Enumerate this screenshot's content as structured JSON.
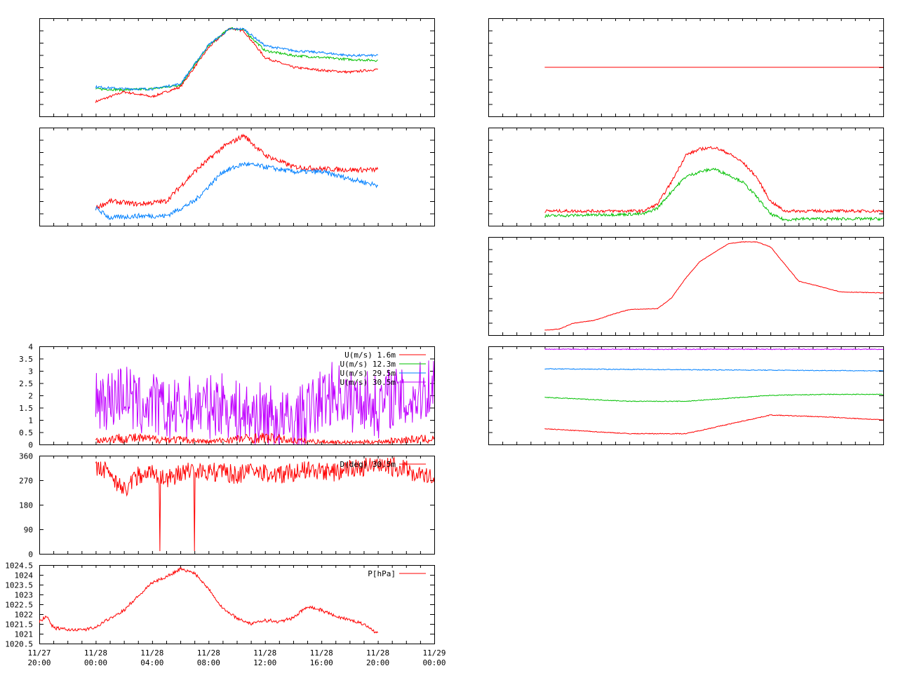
{
  "colors": {
    "red": "#ff0000",
    "green": "#00c000",
    "blue": "#0080ff",
    "violet": "#c000ff",
    "axis": "#000000"
  },
  "x_axis": {
    "range": [
      "11/27 20:00",
      "11/29 00:00"
    ],
    "ticks": [
      {
        "date": "11/27",
        "time": "20:00"
      },
      {
        "date": "11/28",
        "time": "00:00"
      },
      {
        "date": "11/28",
        "time": "04:00"
      },
      {
        "date": "11/28",
        "time": "08:00"
      },
      {
        "date": "11/28",
        "time": "12:00"
      },
      {
        "date": "11/28",
        "time": "16:00"
      },
      {
        "date": "11/28",
        "time": "20:00"
      },
      {
        "date": "11/29",
        "time": "00:00"
      }
    ]
  },
  "chart_data": [
    {
      "id": "temp_profile",
      "type": "line",
      "ylabel": "",
      "series": [
        {
          "color": "#ff0000",
          "hours": [
            4,
            6,
            8,
            10,
            12,
            13.5,
            14.5,
            16,
            18,
            20,
            22,
            24
          ],
          "values": [
            0.15,
            0.25,
            0.2,
            0.3,
            0.7,
            0.9,
            0.87,
            0.6,
            0.5,
            0.47,
            0.45,
            0.48
          ]
        },
        {
          "color": "#00c000",
          "hours": [
            4,
            6,
            8,
            10,
            12,
            13.5,
            14.5,
            16,
            18,
            20,
            22,
            24
          ],
          "values": [
            0.28,
            0.27,
            0.28,
            0.32,
            0.72,
            0.9,
            0.88,
            0.67,
            0.62,
            0.6,
            0.58,
            0.57
          ]
        },
        {
          "color": "#0080ff",
          "hours": [
            4,
            6,
            8,
            10,
            12,
            13.5,
            14.5,
            16,
            18,
            20,
            22,
            24
          ],
          "values": [
            0.3,
            0.28,
            0.28,
            0.33,
            0.73,
            0.89,
            0.89,
            0.72,
            0.67,
            0.65,
            0.62,
            0.62
          ]
        }
      ]
    },
    {
      "id": "flat_profile",
      "type": "line",
      "series": [
        {
          "color": "#ff0000",
          "hours": [
            4,
            28
          ],
          "values": [
            0.5,
            0.5
          ]
        }
      ]
    },
    {
      "id": "humidity",
      "type": "line",
      "series": [
        {
          "color": "#ff0000",
          "hours": [
            4,
            5,
            7,
            9,
            11,
            13,
            14.5,
            16,
            18,
            20,
            22,
            24
          ],
          "values": [
            0.18,
            0.25,
            0.22,
            0.25,
            0.55,
            0.8,
            0.92,
            0.72,
            0.6,
            0.58,
            0.57,
            0.57
          ]
        },
        {
          "color": "#0080ff",
          "hours": [
            4,
            5,
            7,
            9,
            11,
            13,
            14.5,
            16,
            18,
            20,
            22,
            24
          ],
          "values": [
            0.18,
            0.08,
            0.1,
            0.1,
            0.25,
            0.55,
            0.63,
            0.6,
            0.55,
            0.55,
            0.48,
            0.41
          ]
        }
      ]
    },
    {
      "id": "radiation",
      "type": "line",
      "series": [
        {
          "color": "#ff0000",
          "hours": [
            4,
            11,
            12,
            13,
            14,
            15,
            16,
            17,
            18,
            19,
            20,
            21,
            22,
            28
          ],
          "values": [
            0.15,
            0.15,
            0.22,
            0.45,
            0.72,
            0.78,
            0.8,
            0.74,
            0.65,
            0.5,
            0.25,
            0.15,
            0.15,
            0.15
          ]
        },
        {
          "color": "#00c000",
          "hours": [
            4,
            11,
            12,
            13,
            14,
            15,
            16,
            17,
            18,
            19,
            20,
            21,
            22,
            28
          ],
          "values": [
            0.1,
            0.12,
            0.18,
            0.35,
            0.5,
            0.55,
            0.58,
            0.52,
            0.45,
            0.3,
            0.12,
            0.06,
            0.07,
            0.07
          ]
        }
      ]
    },
    {
      "id": "theta_profile",
      "type": "line",
      "series": [
        {
          "color": "#ff0000",
          "hours": [
            4,
            5,
            6,
            7.5,
            9,
            10,
            12,
            13,
            14,
            15,
            17,
            18,
            19,
            20,
            22,
            25,
            28
          ],
          "values": [
            0.05,
            0.06,
            0.12,
            0.15,
            0.22,
            0.26,
            0.27,
            0.38,
            0.58,
            0.75,
            0.93,
            0.95,
            0.95,
            0.9,
            0.55,
            0.44,
            0.43
          ]
        }
      ]
    },
    {
      "id": "deep_profile",
      "type": "line",
      "series": [
        {
          "color": "#c000ff",
          "hours": [
            4,
            28
          ],
          "values": [
            0.97,
            0.97
          ]
        },
        {
          "color": "#0080ff",
          "hours": [
            4,
            28
          ],
          "values": [
            0.77,
            0.75
          ]
        },
        {
          "color": "#00c000",
          "hours": [
            4,
            10,
            14,
            20,
            24,
            28
          ],
          "values": [
            0.48,
            0.44,
            0.44,
            0.5,
            0.51,
            0.51
          ]
        },
        {
          "color": "#ff0000",
          "hours": [
            4,
            10,
            14,
            20,
            24,
            28
          ],
          "values": [
            0.16,
            0.11,
            0.11,
            0.3,
            0.28,
            0.25
          ]
        }
      ]
    },
    {
      "id": "wind_speed",
      "type": "line",
      "ylim": [
        0,
        4
      ],
      "yticks": [
        "0",
        "0.5",
        "1",
        "1.5",
        "2",
        "2.5",
        "3",
        "3.5",
        "4"
      ],
      "legend": [
        {
          "label": "U(m/s)  1.6m",
          "color": "#ff0000"
        },
        {
          "label": "U(m/s) 12.3m",
          "color": "#00c000"
        },
        {
          "label": "U(m/s) 29.5m",
          "color": "#0080ff"
        },
        {
          "label": "U(m/s) 30.5m",
          "color": "#c000ff"
        }
      ],
      "series": [
        {
          "color": "#c000ff",
          "hours": [
            4,
            5,
            6,
            7,
            8,
            9,
            10,
            11,
            12,
            13,
            14,
            15,
            16,
            17,
            18,
            19,
            20,
            21,
            22,
            23,
            24,
            25,
            26,
            27,
            28
          ],
          "values": [
            2,
            1.8,
            2.2,
            1.5,
            1.7,
            1.3,
            1.4,
            1.6,
            1.5,
            1.7,
            1.3,
            1.2,
            1.3,
            1.0,
            0.9,
            1.3,
            1.8,
            2.2,
            1.7,
            1.9,
            1.5,
            2.0,
            1.7,
            2.1,
            2.5
          ]
        },
        {
          "color": "#ff0000",
          "hours": [
            4,
            6,
            8,
            10,
            12,
            14,
            16,
            18,
            20,
            22,
            24,
            26,
            28
          ],
          "values": [
            0.3,
            0.5,
            0.4,
            0.35,
            0.2,
            0.4,
            0.5,
            0.3,
            0.2,
            0.15,
            0.2,
            0.35,
            0.4
          ]
        }
      ]
    },
    {
      "id": "wind_direction",
      "type": "line",
      "ylim": [
        0,
        360
      ],
      "yticks": [
        "0",
        "90",
        "180",
        "270",
        "360"
      ],
      "legend": [
        {
          "label": "D(deg) 30.5m",
          "color": "#ff0000"
        }
      ],
      "series": [
        {
          "color": "#ff0000",
          "hours": [
            4,
            5,
            6,
            7,
            8,
            9,
            10,
            11,
            12,
            13,
            14,
            15,
            16,
            17,
            18,
            19,
            20,
            21,
            22,
            23,
            24,
            25,
            26,
            27,
            28
          ],
          "values": [
            310,
            300,
            230,
            290,
            300,
            270,
            300,
            310,
            300,
            300,
            290,
            300,
            295,
            290,
            300,
            305,
            300,
            300,
            310,
            320,
            315,
            320,
            310,
            290,
            275
          ]
        }
      ]
    },
    {
      "id": "pressure",
      "type": "line",
      "ylim": [
        1020.5,
        1024.5
      ],
      "yticks": [
        "1020.5",
        "1021",
        "1021.5",
        "1022",
        "1022.5",
        "1023",
        "1023.5",
        "1024",
        "1024.5"
      ],
      "legend": [
        {
          "label": "P[hPa]",
          "color": "#ff0000"
        }
      ],
      "series": [
        {
          "color": "#ff0000",
          "hours": [
            0,
            0.5,
            1,
            2,
            3,
            4,
            5,
            6,
            7,
            8,
            9,
            10,
            11,
            12,
            13,
            14,
            15,
            16,
            17,
            18,
            19,
            20,
            21,
            22,
            23,
            24
          ],
          "values": [
            1021.6,
            1021.9,
            1021.3,
            1021.2,
            1021.2,
            1021.3,
            1021.8,
            1022.2,
            1022.9,
            1023.6,
            1023.9,
            1024.3,
            1024.1,
            1023.3,
            1022.3,
            1021.8,
            1021.5,
            1021.7,
            1021.6,
            1021.8,
            1022.4,
            1022.2,
            1021.9,
            1021.7,
            1021.5,
            1021.0
          ]
        }
      ]
    }
  ]
}
